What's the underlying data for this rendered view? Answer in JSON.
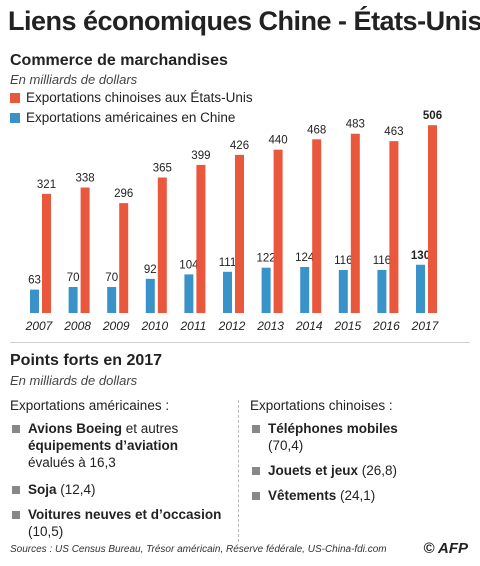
{
  "title": "Liens économiques Chine - États-Unis",
  "section1": {
    "title": "Commerce de marchandises",
    "unit": "En milliards de dollars"
  },
  "chart_data": {
    "type": "bar",
    "categories": [
      "2007",
      "2008",
      "2009",
      "2010",
      "2011",
      "2012",
      "2013",
      "2014",
      "2015",
      "2016",
      "2017"
    ],
    "series": [
      {
        "name": "Exportations chinoises aux États-Unis",
        "color": "#e9573c",
        "values": [
          321,
          338,
          296,
          365,
          399,
          426,
          440,
          468,
          483,
          463,
          506
        ]
      },
      {
        "name": "Exportations américaines en Chine",
        "color": "#3a93c8",
        "values": [
          63,
          70,
          70,
          92,
          104,
          111,
          122,
          124,
          116,
          116,
          130
        ]
      }
    ],
    "ylim": [
      0,
      520
    ],
    "grid": false,
    "legend": "top-left",
    "highlight_category": "2017"
  },
  "section2": {
    "title": "Points forts en 2017",
    "unit": "En milliards de dollars",
    "us": {
      "heading": "Exportations américaines :",
      "items": [
        {
          "b1": "Avions Boeing",
          "t1": " et autres",
          "b2": "équipements d’aviation",
          "t2": "évalués à 16,3"
        },
        {
          "b": "Soja",
          "t": " (12,4)"
        },
        {
          "b": "Voitures neuves et d’occasion",
          "t": "(10,5)"
        }
      ]
    },
    "china": {
      "heading": "Exportations chinoises :",
      "items": [
        {
          "b": "Téléphones mobiles",
          "t": "(70,4)"
        },
        {
          "b": "Jouets et jeux",
          "t": " (26,8)"
        },
        {
          "b": "Vêtements",
          "t": " (24,1)"
        }
      ]
    }
  },
  "sources": "Sources : US Census Bureau, Trésor américain, Réserve fédérale, US-China-fdi.com",
  "logo": "© AFP"
}
